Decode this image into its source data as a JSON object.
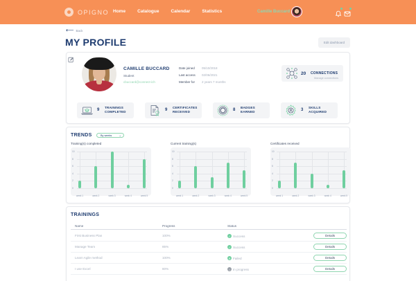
{
  "header": {
    "logo_text": "OPIGNO",
    "nav": [
      "Home",
      "Catalogue",
      "Calendar",
      "Statistics"
    ],
    "user_name": "Camille Buccard",
    "accent_color": "#f79056",
    "notification_dot_color": "#6fd3a9"
  },
  "page": {
    "back_label": "Back",
    "title": "MY PROFILE",
    "edit_dashboard_label": "Edit dashboard"
  },
  "profile": {
    "name": "CAMILLE BUCCARD",
    "role": "Student",
    "email": "cbuccard@connect-ich",
    "meta": [
      {
        "label": "Date joined",
        "value": "05/10/2018"
      },
      {
        "label": "Last access",
        "value": "02/06/2021"
      },
      {
        "label": "Member for",
        "value": "2 years 7 months"
      }
    ],
    "connections": {
      "count": "20",
      "label": "CONNECTIONS",
      "sub": "Manage connections"
    },
    "stats": [
      {
        "count": "9",
        "line1": "TRAININGS",
        "line2": "COMPLETED",
        "icon": "laptop-graduation-icon"
      },
      {
        "count": "9",
        "line1": "CERTIFICATES",
        "line2": "RECEIVED",
        "icon": "certificate-icon"
      },
      {
        "count": "8",
        "line1": "BADGES",
        "line2": "EARNED",
        "icon": "badge-icon"
      },
      {
        "count": "3",
        "line1": "SKILLS",
        "line2": "ACQUIRED",
        "icon": "skills-gear-icon"
      }
    ]
  },
  "trends": {
    "title": "TRENDS",
    "period_select": "By weeks"
  },
  "chart_data": [
    {
      "type": "bar",
      "title": "Training(s) completed",
      "categories": [
        "week 1",
        "week 2",
        "week 3",
        "week 4",
        "week 5"
      ],
      "values": [
        2,
        6,
        10,
        1,
        8
      ],
      "yticks": [
        "0",
        "2",
        "4",
        "6",
        "8",
        "10"
      ],
      "ylim": [
        0,
        10
      ],
      "grid": true,
      "color": "#6fcf9f"
    },
    {
      "type": "bar",
      "title": "Current training(s)",
      "categories": [
        "week 1",
        "week 2",
        "week 3",
        "week 4",
        "week 5"
      ],
      "values": [
        2,
        6,
        3,
        7,
        5
      ],
      "yticks": [
        "0",
        "2",
        "4",
        "6",
        "8",
        "10"
      ],
      "ylim": [
        0,
        10
      ],
      "grid": true,
      "color": "#6fcf9f"
    },
    {
      "type": "bar",
      "title": "Certificates received",
      "categories": [
        "week 1",
        "week 2",
        "week 3",
        "week 4",
        "week 5"
      ],
      "values": [
        2,
        7,
        4,
        1,
        5
      ],
      "yticks": [
        "0",
        "2",
        "4",
        "6",
        "8",
        "10"
      ],
      "ylim": [
        0,
        10
      ],
      "grid": true,
      "color": "#6fcf9f"
    }
  ],
  "trainings": {
    "title": "TRAININGS",
    "columns": [
      "Name",
      "Progress",
      "Status"
    ],
    "details_label": "Details",
    "rows": [
      {
        "name": "First Business Plan",
        "progress": "100%",
        "status": "Success",
        "status_color": "#6fcf9f"
      },
      {
        "name": "Manage Team",
        "progress": "85%",
        "status": "Success",
        "status_color": "#6fcf9f"
      },
      {
        "name": "Learn Agile method",
        "progress": "100%",
        "status": "Failed",
        "status_color": "#6fcf9f"
      },
      {
        "name": "I use Excel",
        "progress": "80%",
        "status": "In progress",
        "status_color": "#9aa0a8"
      }
    ]
  }
}
